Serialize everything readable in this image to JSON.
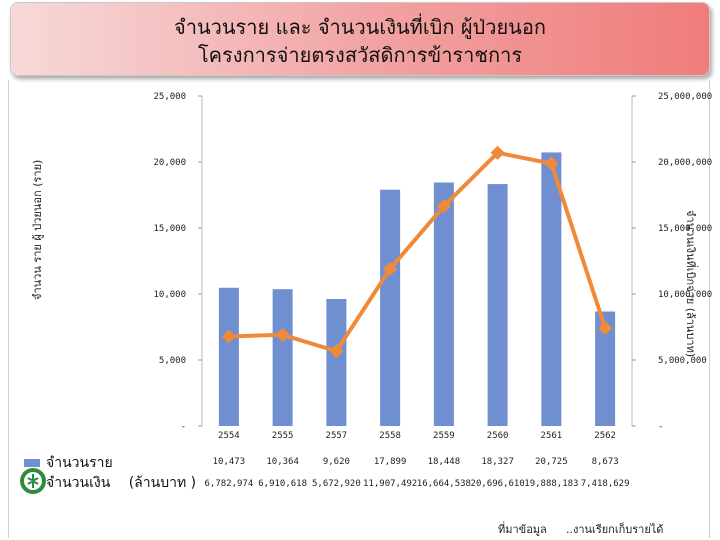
{
  "header": {
    "title_line1": "จำนวนราย   และ จำนวนเงินที่เบิก              ผู้ป่วยนอก",
    "title_line2": "โครงการจ่ายตรงสวัสดิการข้าราชการ"
  },
  "axes": {
    "left_title": "จำนวน  ราย ผู้ ป่วยนอก (ราย)",
    "right_title": "จำนวนเงินที่เบิกจ่าย (ล้านบาท)"
  },
  "legend": {
    "count_label": "จำนวนราย",
    "amount_label": "จำนวนเงิน",
    "amount_unit": "(ล้านบาท )"
  },
  "source": {
    "label": "ที่มาข้อมูล",
    "text": "..งานเรียกเก็บรายได้"
  },
  "colors": {
    "bar": "#6f8fd0",
    "line": "#f08a3a",
    "grid": "#d9d9d9"
  },
  "chart_data": {
    "type": "bar",
    "categories": [
      "2554",
      "2555",
      "2557",
      "2558",
      "2559",
      "2560",
      "2561",
      "2562"
    ],
    "series": [
      {
        "name": "จำนวนราย",
        "type": "bar",
        "axis": "left",
        "values": [
          10473,
          10364,
          9620,
          17899,
          18448,
          18327,
          20725,
          8673
        ],
        "labels": [
          "10,473",
          "10,364",
          "9,620",
          "17,899",
          "18,448",
          "18,327",
          "20,725",
          "8,673"
        ]
      },
      {
        "name": "จำนวนเงิน",
        "type": "line",
        "axis": "right",
        "values": [
          6782974,
          6910618,
          5672920,
          11907492,
          16664538,
          20696610,
          19888183,
          7418629
        ],
        "labels": [
          "6,782,974",
          "6,910,618",
          "5,672,920",
          "11,907,492",
          "16,664,538",
          "20,696,610",
          "19,888,183",
          "7,418,629"
        ]
      }
    ],
    "left_ticks": [
      "-",
      "5,000",
      "10,000",
      "15,000",
      "20,000",
      "25,000"
    ],
    "right_ticks": [
      "-",
      "5,000,000",
      "10,000,000",
      "15,000,000",
      "20,000,000",
      "25,000,000"
    ],
    "ylim_left": [
      0,
      25000
    ],
    "ylim_right": [
      0,
      25000000
    ],
    "grid": false
  }
}
